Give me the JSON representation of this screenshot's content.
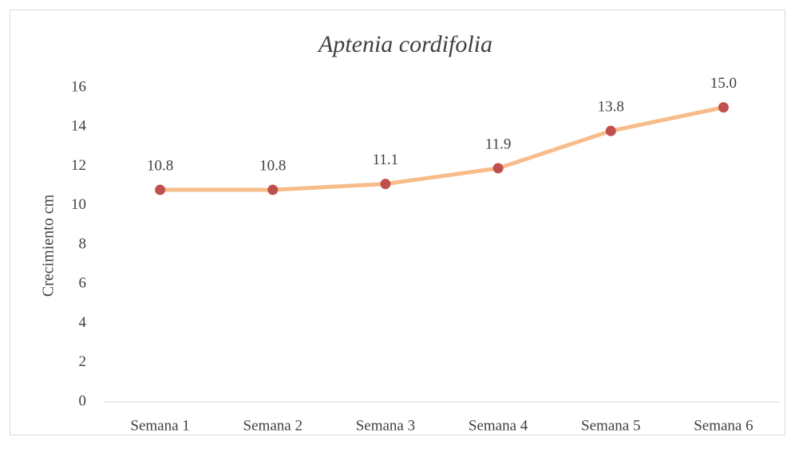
{
  "chart_data": {
    "type": "line",
    "title": "Aptenia cordifolia",
    "y_label": "Crecimiento cm",
    "categories": [
      "Semana 1",
      "Semana 2",
      "Semana 3",
      "Semana 4",
      "Semana 5",
      "Semana 6"
    ],
    "series": [
      {
        "name": "Crecimiento cm",
        "color": "#f7bc8a",
        "marker_color": "#c0504d",
        "values": [
          10.8,
          10.8,
          11.1,
          11.9,
          13.8,
          15.0
        ],
        "value_labels": [
          "10.8",
          "10.8",
          "11.1",
          "11.9",
          "13.8",
          "15.0"
        ]
      }
    ],
    "ylim": [
      0,
      16
    ],
    "yticks": [
      0,
      2,
      4,
      6,
      8,
      10,
      12,
      14,
      16
    ],
    "grid": false
  }
}
